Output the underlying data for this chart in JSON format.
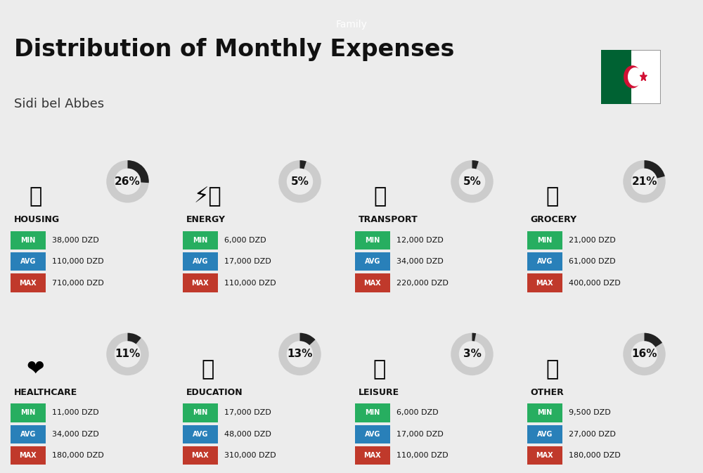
{
  "title": "Distribution of Monthly Expenses",
  "subtitle": "Sidi bel Abbes",
  "header_label": "Family",
  "bg_color": "#ececec",
  "categories": [
    {
      "name": "HOUSING",
      "pct": 26,
      "min_val": "38,000 DZD",
      "avg_val": "110,000 DZD",
      "max_val": "710,000 DZD"
    },
    {
      "name": "ENERGY",
      "pct": 5,
      "min_val": "6,000 DZD",
      "avg_val": "17,000 DZD",
      "max_val": "110,000 DZD"
    },
    {
      "name": "TRANSPORT",
      "pct": 5,
      "min_val": "12,000 DZD",
      "avg_val": "34,000 DZD",
      "max_val": "220,000 DZD"
    },
    {
      "name": "GROCERY",
      "pct": 21,
      "min_val": "21,000 DZD",
      "avg_val": "61,000 DZD",
      "max_val": "400,000 DZD"
    },
    {
      "name": "HEALTHCARE",
      "pct": 11,
      "min_val": "11,000 DZD",
      "avg_val": "34,000 DZD",
      "max_val": "180,000 DZD"
    },
    {
      "name": "EDUCATION",
      "pct": 13,
      "min_val": "17,000 DZD",
      "avg_val": "48,000 DZD",
      "max_val": "310,000 DZD"
    },
    {
      "name": "LEISURE",
      "pct": 3,
      "min_val": "6,000 DZD",
      "avg_val": "17,000 DZD",
      "max_val": "110,000 DZD"
    },
    {
      "name": "OTHER",
      "pct": 16,
      "min_val": "9,500 DZD",
      "avg_val": "27,000 DZD",
      "max_val": "180,000 DZD"
    }
  ],
  "min_color": "#27ae60",
  "avg_color": "#2980b9",
  "max_color": "#c0392b",
  "donut_active": "#222222",
  "donut_inactive": "#cccccc",
  "label_color": "#ffffff",
  "category_color": "#111111",
  "icon_images": [
    "housing",
    "energy",
    "transport",
    "grocery",
    "healthcare",
    "education",
    "leisure",
    "other"
  ]
}
